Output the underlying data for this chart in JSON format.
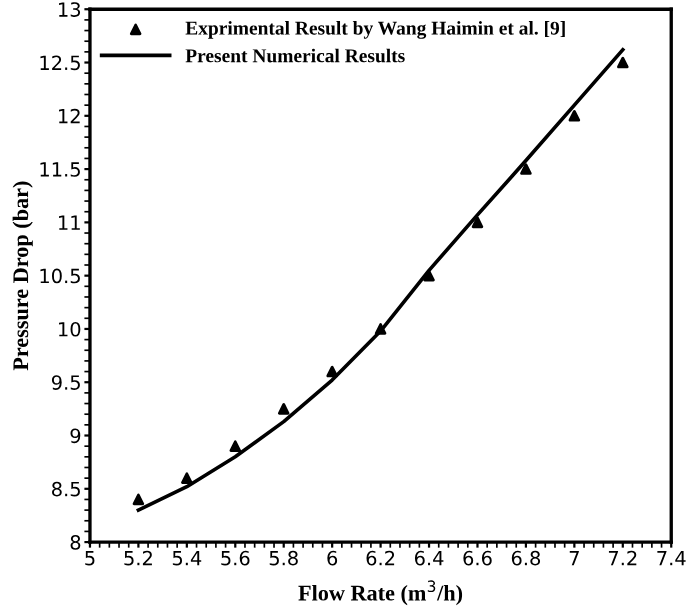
{
  "chart_data": {
    "type": "line",
    "xlabel": "Flow Rate (m$^{3}$/h)",
    "ylabel": "Pressure Drop (bar)",
    "xlim": [
      5,
      7.4
    ],
    "xticks": [
      5,
      5.2,
      5.4,
      5.6,
      5.8,
      6,
      6.2,
      6.4,
      6.6,
      6.8,
      7,
      7.2,
      7.4
    ],
    "ylim": [
      8,
      13
    ],
    "yticks": [
      8,
      8.5,
      9,
      9.5,
      10,
      10.5,
      11,
      11.5,
      12,
      12.5,
      13
    ],
    "legend": "top left",
    "grid": false,
    "series": [
      {
        "name": "Exprimental Result by Wang Haimin et al. [9]",
        "type": "scatter",
        "marker": "triangle",
        "color": "#000000",
        "x": [
          5.2,
          5.4,
          5.6,
          5.8,
          6.0,
          6.2,
          6.4,
          6.6,
          6.8,
          7.0,
          7.2
        ],
        "values": [
          8.4,
          8.6,
          8.9,
          9.25,
          9.6,
          10.0,
          10.5,
          11.0,
          11.5,
          12.0,
          12.5
        ]
      },
      {
        "name": "Present Numerical Results",
        "marker": "none",
        "line_style": "solid",
        "color": "#000000",
        "x": [
          5.2,
          5.4,
          5.6,
          5.8,
          6.0,
          6.2,
          6.4,
          6.6,
          6.8,
          7.0,
          7.2
        ],
        "values": [
          8.3,
          8.52,
          8.8,
          9.13,
          9.52,
          9.98,
          10.55,
          11.07,
          11.58,
          12.1,
          12.62
        ]
      }
    ]
  }
}
